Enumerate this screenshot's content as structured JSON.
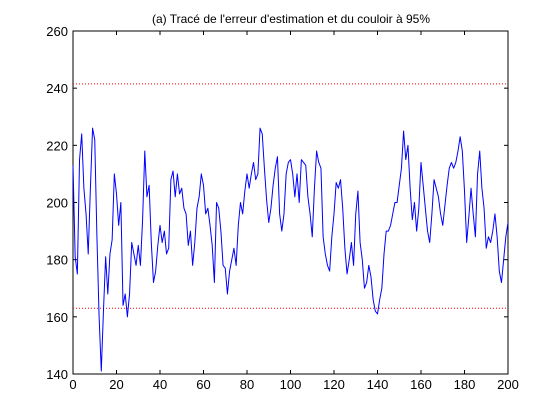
{
  "chart_data": {
    "type": "line",
    "title": "(a) Tracé de l'erreur d'estimation et du couloir à 95%",
    "xlabel": "",
    "ylabel": "",
    "xlim": [
      0,
      200
    ],
    "ylim": [
      140,
      260
    ],
    "xticks": [
      0,
      20,
      40,
      60,
      80,
      100,
      120,
      140,
      160,
      180,
      200
    ],
    "yticks": [
      140,
      160,
      180,
      200,
      220,
      240,
      260
    ],
    "grid": false,
    "colors": {
      "series": "#0000ff",
      "bounds": "#ff0000",
      "axes": "#000000"
    },
    "bounds": {
      "upper": 241.5,
      "lower": 163,
      "style": "dotted"
    },
    "series": [
      {
        "color": "#0000ff",
        "x": [
          0,
          1,
          2,
          3,
          4,
          5,
          6,
          7,
          8,
          9,
          10,
          11,
          12,
          13,
          14,
          15,
          16,
          17,
          18,
          19,
          20,
          21,
          22,
          23,
          24,
          25,
          26,
          27,
          28,
          29,
          30,
          31,
          32,
          33,
          34,
          35,
          36,
          37,
          38,
          39,
          40,
          41,
          42,
          43,
          44,
          45,
          46,
          47,
          48,
          49,
          50,
          51,
          52,
          53,
          54,
          55,
          56,
          57,
          58,
          59,
          60,
          61,
          62,
          63,
          64,
          65,
          66,
          67,
          68,
          69,
          70,
          71,
          72,
          73,
          74,
          75,
          76,
          77,
          78,
          79,
          80,
          81,
          82,
          83,
          84,
          85,
          86,
          87,
          88,
          89,
          90,
          91,
          92,
          93,
          94,
          95,
          96,
          97,
          98,
          99,
          100,
          101,
          102,
          103,
          104,
          105,
          106,
          107,
          108,
          109,
          110,
          111,
          112,
          113,
          114,
          115,
          116,
          117,
          118,
          119,
          120,
          121,
          122,
          123,
          124,
          125,
          126,
          127,
          128,
          129,
          130,
          131,
          132,
          133,
          134,
          135,
          136,
          137,
          138,
          139,
          140,
          141,
          142,
          143,
          144,
          145,
          146,
          147,
          148,
          149,
          150,
          151,
          152,
          153,
          154,
          155,
          156,
          157,
          158,
          159,
          160,
          161,
          162,
          163,
          164,
          165,
          166,
          167,
          168,
          169,
          170,
          171,
          172,
          173,
          174,
          175,
          176,
          177,
          178,
          179,
          180,
          181,
          182,
          183,
          184,
          185,
          186,
          187,
          188,
          189,
          190,
          191,
          192,
          193,
          194,
          195,
          196,
          197,
          198,
          199,
          200
        ],
        "values": [
          213,
          181,
          175,
          215,
          224,
          205,
          196,
          182,
          205,
          226,
          222,
          188,
          160,
          141,
          162,
          181,
          168,
          182,
          187,
          210,
          203,
          192,
          200,
          164,
          168,
          160,
          168,
          186,
          182,
          178,
          185,
          178,
          194,
          218,
          202,
          206,
          186,
          172,
          176,
          185,
          192,
          186,
          190,
          182,
          184,
          208,
          211,
          202,
          210,
          203,
          205,
          198,
          196,
          185,
          190,
          178,
          186,
          198,
          202,
          210,
          206,
          196,
          198,
          192,
          185,
          172,
          200,
          198,
          190,
          178,
          177,
          168,
          176,
          180,
          184,
          178,
          192,
          200,
          196,
          204,
          210,
          205,
          210,
          214,
          208,
          210,
          226,
          224,
          212,
          201,
          193,
          198,
          206,
          212,
          216,
          196,
          190,
          196,
          210,
          214,
          215,
          210,
          202,
          210,
          200,
          215,
          214,
          213,
          202,
          196,
          188,
          205,
          218,
          214,
          212,
          188,
          182,
          178,
          176,
          188,
          196,
          207,
          205,
          208,
          198,
          184,
          175,
          180,
          186,
          178,
          196,
          204,
          186,
          180,
          170,
          172,
          178,
          174,
          166,
          162,
          161,
          166,
          170,
          182,
          190,
          190,
          192,
          196,
          200,
          200,
          206,
          212,
          225,
          215,
          220,
          205,
          194,
          200,
          190,
          198,
          214,
          206,
          198,
          190,
          186,
          196,
          208,
          205,
          202,
          196,
          192,
          199,
          206,
          212,
          214,
          212,
          214,
          218,
          223,
          218,
          204,
          186,
          195,
          205,
          196,
          188,
          210,
          218,
          205,
          198,
          184,
          188,
          186,
          190,
          196,
          188,
          176,
          172,
          180,
          188,
          193
        ]
      }
    ]
  }
}
